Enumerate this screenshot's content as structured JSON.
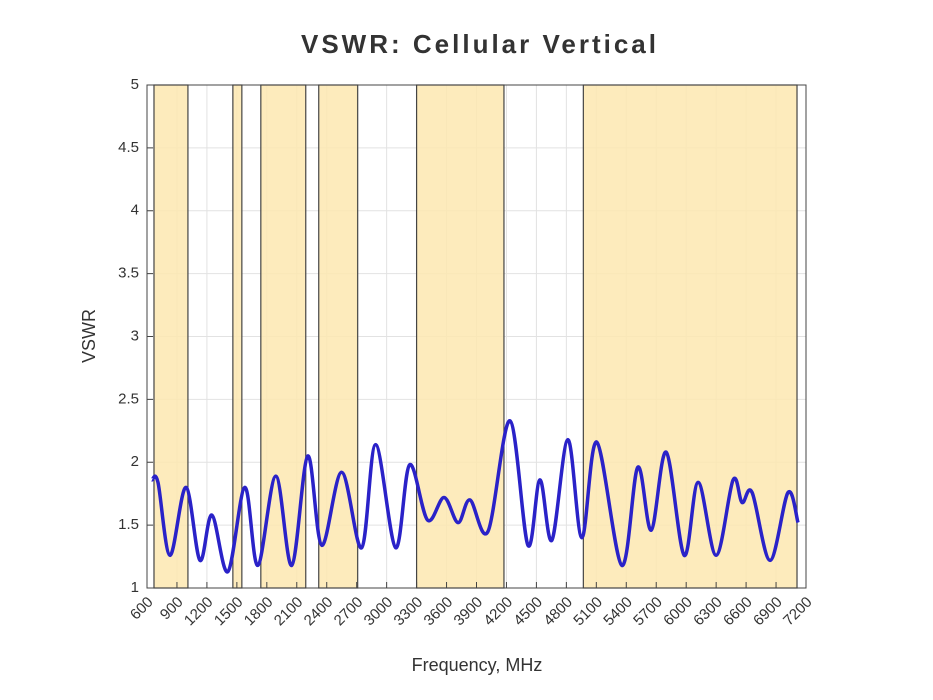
{
  "chart_data": {
    "type": "line",
    "title": "VSWR: Cellular Vertical",
    "x_label": "Frequency, MHz",
    "y_label": "VSWR",
    "xlim": [
      600,
      7200
    ],
    "ylim": [
      1,
      5
    ],
    "xticks": [
      600,
      900,
      1200,
      1500,
      1800,
      2100,
      2400,
      2700,
      3000,
      3300,
      3600,
      3900,
      4200,
      4500,
      4800,
      5100,
      5400,
      5700,
      6000,
      6300,
      6600,
      6900,
      7200
    ],
    "yticks": [
      1,
      1.5,
      2,
      2.5,
      3,
      3.5,
      4,
      4.5,
      5
    ],
    "grid": true,
    "bands": [
      [
        670,
        1010
      ],
      [
        1460,
        1550
      ],
      [
        1740,
        2190
      ],
      [
        2320,
        2710
      ],
      [
        3300,
        4175
      ],
      [
        4970,
        7110
      ]
    ],
    "band_color": "#fde7b0",
    "series": [
      {
        "color": "#2a22c8",
        "x": [
          650,
          710,
          830,
          990,
          1130,
          1250,
          1410,
          1580,
          1710,
          1890,
          2050,
          2210,
          2350,
          2550,
          2750,
          2890,
          3090,
          3230,
          3410,
          3575,
          3715,
          3835,
          4015,
          4235,
          4415,
          4535,
          4655,
          4815,
          4955,
          5105,
          5355,
          5515,
          5650,
          5800,
          5980,
          6120,
          6300,
          6470,
          6560,
          6660,
          6840,
          7020,
          7120
        ],
        "values": [
          1.86,
          1.84,
          1.26,
          1.8,
          1.22,
          1.58,
          1.13,
          1.8,
          1.18,
          1.89,
          1.18,
          2.05,
          1.34,
          1.92,
          1.32,
          2.14,
          1.32,
          1.98,
          1.54,
          1.72,
          1.52,
          1.7,
          1.45,
          2.33,
          1.34,
          1.86,
          1.38,
          2.18,
          1.4,
          2.16,
          1.18,
          1.96,
          1.46,
          2.08,
          1.26,
          1.84,
          1.26,
          1.86,
          1.68,
          1.76,
          1.22,
          1.76,
          1.52
        ]
      }
    ]
  }
}
